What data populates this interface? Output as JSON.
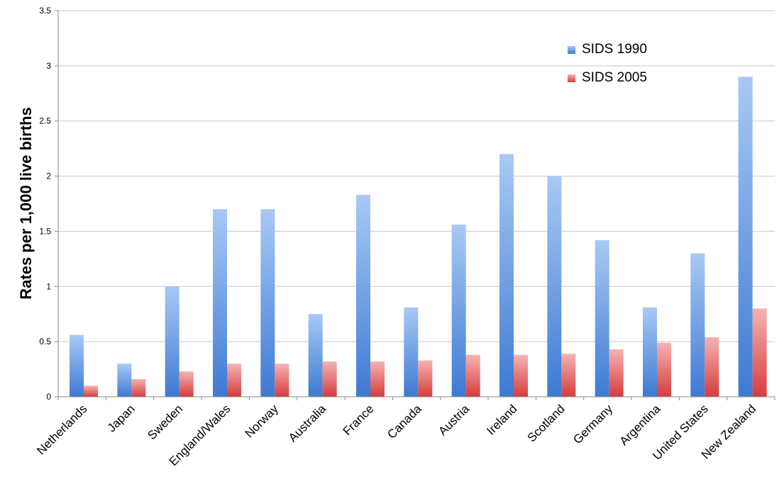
{
  "chart_data": {
    "type": "bar",
    "ylabel": "Rates per 1,000 live births",
    "xlabel": "",
    "ylim": [
      0,
      3.5
    ],
    "yticks": [
      {
        "value": 0,
        "label": "0"
      },
      {
        "value": 0.5,
        "label": "0.5"
      },
      {
        "value": 1,
        "label": "1"
      },
      {
        "value": 1.5,
        "label": "1.5"
      },
      {
        "value": 2,
        "label": "2"
      },
      {
        "value": 2.5,
        "label": "2.5"
      },
      {
        "value": 3,
        "label": "3"
      },
      {
        "value": 3.5,
        "label": "3.5"
      }
    ],
    "grid": true,
    "legend_position": "top-right",
    "categories": [
      "Netherlands",
      "Japan",
      "Sweden",
      "England/Wales",
      "Norway",
      "Australia",
      "France",
      "Canada",
      "Austria",
      "Ireland",
      "Scotland",
      "Germany",
      "Argentina",
      "United States",
      "New Zealand"
    ],
    "series": [
      {
        "name": "SIDS 1990",
        "color": "#4a86d9",
        "values": [
          0.56,
          0.3,
          1.0,
          1.7,
          1.7,
          0.75,
          1.83,
          0.81,
          1.56,
          2.2,
          2.0,
          1.42,
          0.81,
          1.3,
          2.9
        ]
      },
      {
        "name": "SIDS 2005",
        "color": "#e05555",
        "values": [
          0.1,
          0.16,
          0.23,
          0.3,
          0.3,
          0.32,
          0.32,
          0.33,
          0.38,
          0.38,
          0.39,
          0.43,
          0.49,
          0.54,
          0.8
        ]
      }
    ]
  }
}
